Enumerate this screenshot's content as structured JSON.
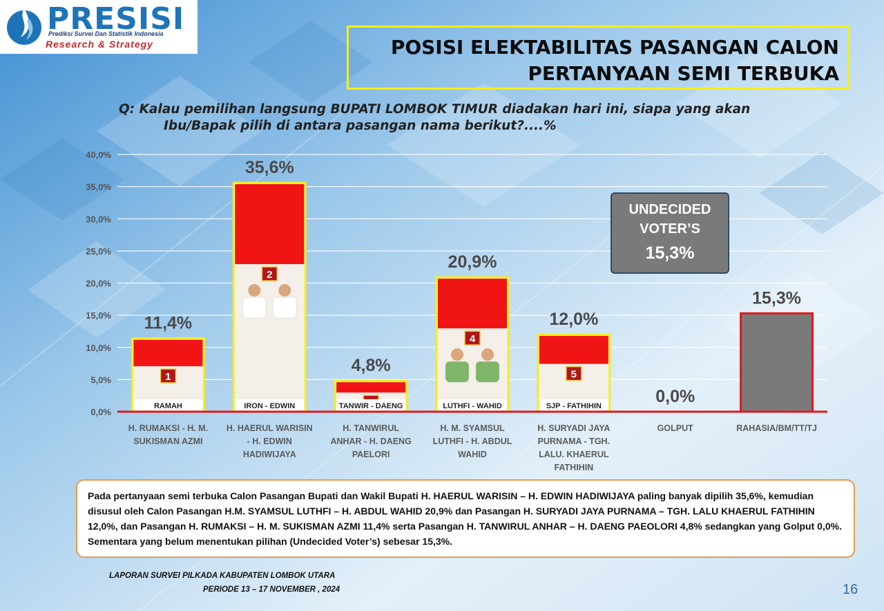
{
  "logo": {
    "name": "PRESISI",
    "subtitle": "Prediksi Survei Dan Statistik Indonesia",
    "tagline": "Research & Strategy"
  },
  "title": {
    "line1": "POSISI ELEKTABILITAS PASANGAN CALON",
    "line2": "PERTANYAAN SEMI TERBUKA"
  },
  "question": {
    "line1": "Q: Kalau pemilihan langsung BUPATI LOMBOK TIMUR diadakan hari ini, siapa yang akan",
    "line2": "Ibu/Bapak pilih di antara pasangan nama berikut?....%"
  },
  "chart_data": {
    "type": "bar",
    "categories": [
      [
        "H. RUMAKSI - H. M.",
        "SUKISMAN AZMI"
      ],
      [
        "H. HAERUL WARISIN",
        "- H. EDWIN",
        "HADIWIJAYA"
      ],
      [
        "H. TANWIRUL",
        "ANHAR - H. DAENG",
        "PAELORI"
      ],
      [
        "H. M. SYAMSUL",
        "LUTHFI - H. ABDUL",
        "WAHID"
      ],
      [
        "H. SURYADI JAYA",
        "PURNAMA - TGH.",
        "LALU. KHAERUL",
        "FATHIHIN"
      ],
      [
        "GOLPUT"
      ],
      [
        "RAHASIA/BM/TT/TJ"
      ]
    ],
    "values": [
      11.4,
      35.6,
      4.8,
      20.9,
      12.0,
      0.0,
      15.3
    ],
    "value_labels": [
      "11,4%",
      "35,6%",
      "4,8%",
      "20,9%",
      "12,0%",
      "0,0%",
      "15,3%"
    ],
    "ylim": [
      0,
      40
    ],
    "yticks": [
      "0,0%",
      "5,0%",
      "10,0%",
      "15,0%",
      "20,0%",
      "25,0%",
      "30,0%",
      "35,0%",
      "40,0%"
    ],
    "grid": true,
    "candidate_numbers": [
      "1",
      "2",
      "3",
      "4",
      "5",
      "",
      ""
    ],
    "poster_captions": [
      "RAMAH",
      "IRON - EDWIN",
      "TANWIR - DAENG",
      "LUTHFI - WAHID",
      "SJP - FATHIHIN",
      "",
      ""
    ],
    "colors": {
      "poster_top": "#f01414",
      "poster_border": "#f6ee19",
      "undecided_bar": "#7a7a7a",
      "undecided_border": "#e01a1a",
      "axis": "#e01a1a"
    }
  },
  "callout": {
    "line1": "UNDECIDED",
    "line2": "VOTER’S",
    "value": "15,3%"
  },
  "summary": "Pada pertanyaan semi terbuka Calon Pasangan Bupati dan Wakil Bupati H. HAERUL WARISIN – H. EDWIN HADIWIJAYA paling banyak dipilih 35,6%, kemudian disusul oleh Calon Pasangan H.M. SYAMSUL LUTHFI – H. ABDUL WAHID 20,9% dan Pasangan H. SURYADI JAYA PURNAMA – TGH. LALU KHAERUL FATHIHIN 12,0%, dan Pasangan H. RUMAKSI – H. M. SUKISMAN AZMI 11,4% serta Pasangan H. TANWIRUL ANHAR – H. DAENG PAEOLORI 4,8% sedangkan yang Golput 0,0%. Sementara yang belum menentukan pilihan (Undecided Voter’s) sebesar 15,3%.",
  "footer": {
    "line1": "LAPORAN  SURVEI PILKADA KABUPATEN LOMBOK UTARA",
    "line2": "PERIODE 13 – 17 NOVEMBER , 2024",
    "page": "16"
  }
}
